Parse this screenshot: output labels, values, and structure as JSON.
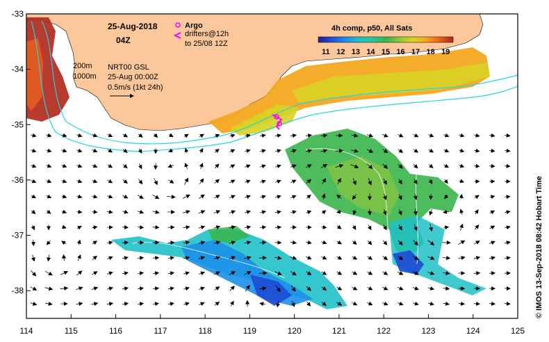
{
  "map": {
    "date": "25-Aug-2018",
    "time": "04Z",
    "product": "4h comp, p50, All Sats",
    "colorbar": {
      "labels": [
        "11",
        "12",
        "13",
        "14",
        "15",
        "16",
        "17",
        "18",
        "19"
      ],
      "min": 10.5,
      "max": 19.5,
      "colors": [
        "#2b1b8f",
        "#1f4fd6",
        "#1c8fe8",
        "#20c0c8",
        "#2fc59a",
        "#38b54a",
        "#8cc63f",
        "#d6d424",
        "#f3a81f",
        "#e8621d",
        "#b0261a"
      ]
    },
    "legend": {
      "argo_label": "Argo",
      "drifters_label": "drifters@12h",
      "drifters_to": "to 25/08 12Z",
      "isobath_200": "200m",
      "isobath_1000": "1000m",
      "current_source": "NRT00 GSL",
      "current_time": "25-Aug 00:00Z",
      "vector_scale": "0.5m/s (1kt 24h)"
    },
    "credit": "© IMOS 13-Sep-2018 08:42 Hobart Time",
    "x_ticks": [
      "114",
      "115",
      "116",
      "117",
      "118",
      "119",
      "120",
      "121",
      "122",
      "123",
      "124",
      "125"
    ],
    "y_ticks": [
      "-33",
      "-34",
      "-35",
      "-36",
      "-37",
      "-38"
    ],
    "lon_range": [
      114,
      125
    ],
    "lat_range": [
      -38.5,
      -33
    ],
    "colors": {
      "land": "#fcc89b",
      "isobath": "#22d4e6",
      "argo": "#ff00ff",
      "drifter": "#ff00ff"
    }
  }
}
